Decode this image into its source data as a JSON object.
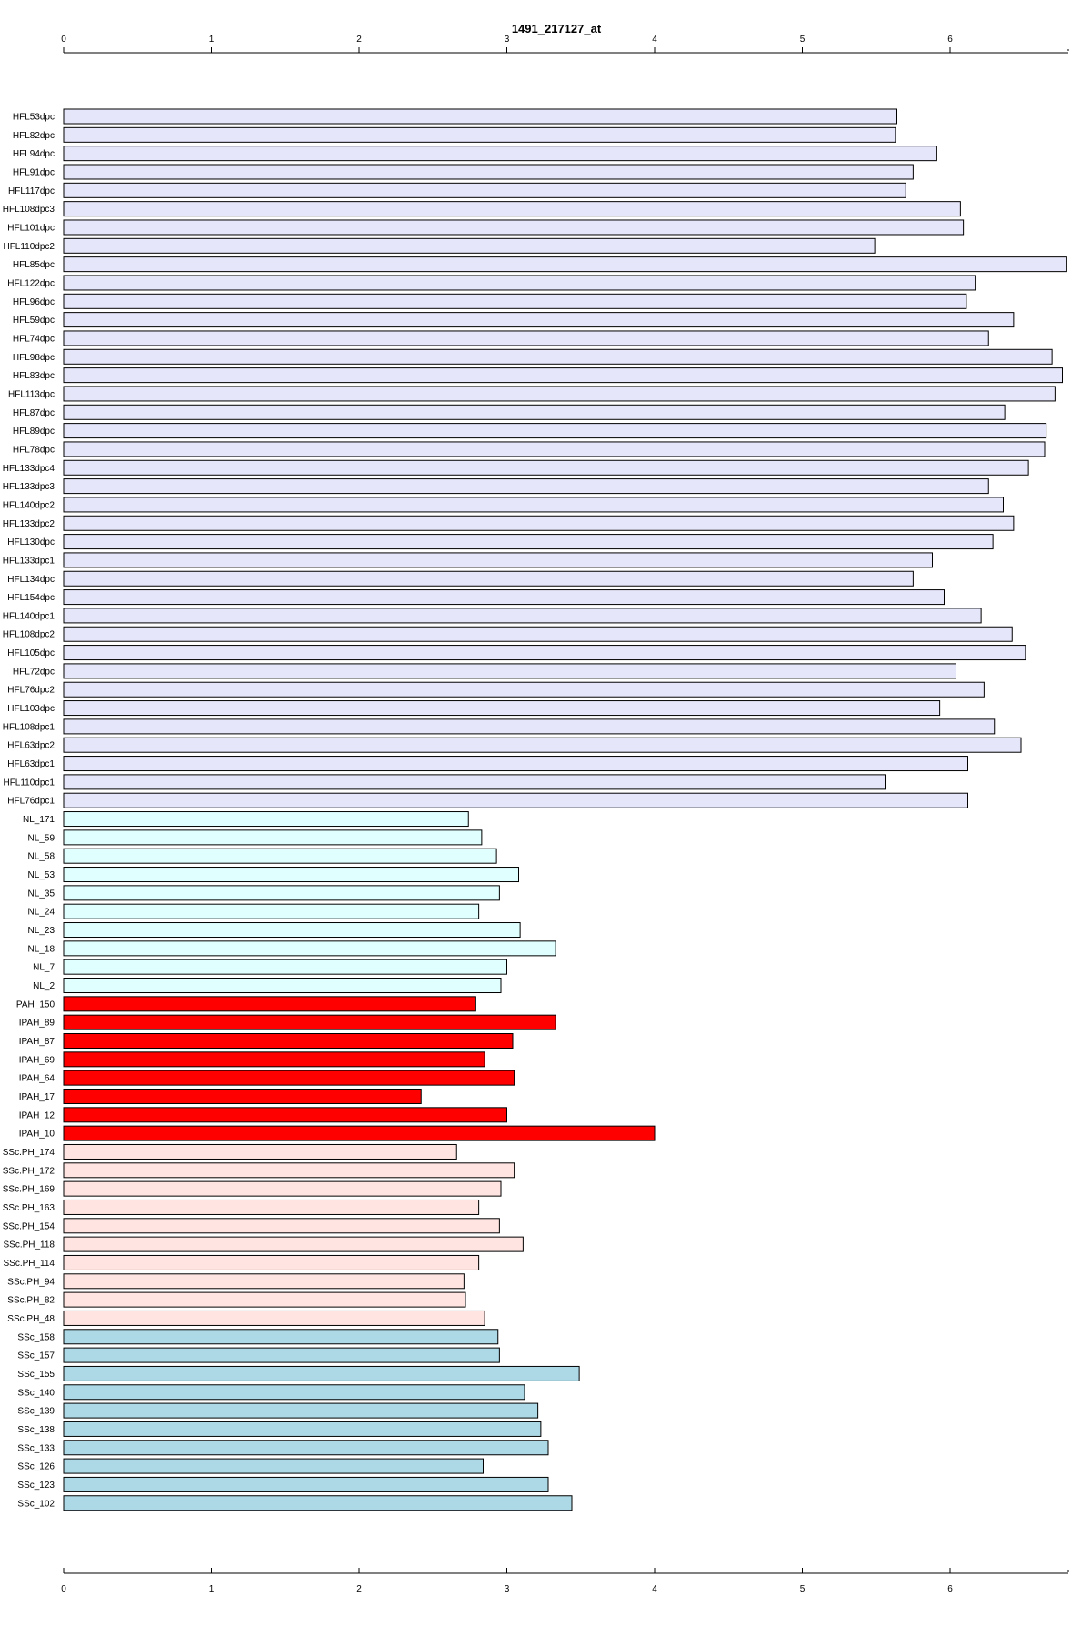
{
  "chart_data": {
    "type": "bar",
    "orientation": "horizontal",
    "title": "1491_217127_at",
    "xlabel": "",
    "ylabel": "",
    "xlim": [
      0,
      6.8
    ],
    "ticks": [
      0,
      1,
      2,
      3,
      4,
      5,
      6
    ],
    "tick_labels": [
      "0",
      "1",
      "2",
      "3",
      "4",
      "5",
      "6"
    ],
    "axes": [
      "top",
      "bottom"
    ],
    "grid": false,
    "group_colors": {
      "HFL": "#e6e6fa",
      "NL": "#e0ffff",
      "IPAH": "#ff0000",
      "SScPH": "#ffe4e1",
      "SSc": "#add8e6"
    },
    "categories": [
      "HFL53dpc",
      "HFL82dpc",
      "HFL94dpc",
      "HFL91dpc",
      "HFL117dpc",
      "HFL108dpc3",
      "HFL101dpc",
      "HFL110dpc2",
      "HFL85dpc",
      "HFL122dpc",
      "HFL96dpc",
      "HFL59dpc",
      "HFL74dpc",
      "HFL98dpc",
      "HFL83dpc",
      "HFL113dpc",
      "HFL87dpc",
      "HFL89dpc",
      "HFL78dpc",
      "HFL133dpc4",
      "HFL133dpc3",
      "HFL140dpc2",
      "HFL133dpc2",
      "HFL130dpc",
      "HFL133dpc1",
      "HFL134dpc",
      "HFL154dpc",
      "HFL140dpc1",
      "HFL108dpc2",
      "HFL105dpc",
      "HFL72dpc",
      "HFL76dpc2",
      "HFL103dpc",
      "HFL108dpc1",
      "HFL63dpc2",
      "HFL63dpc1",
      "HFL110dpc1",
      "HFL76dpc1",
      "NL_171",
      "NL_59",
      "NL_58",
      "NL_53",
      "NL_35",
      "NL_24",
      "NL_23",
      "NL_18",
      "NL_7",
      "NL_2",
      "IPAH_150",
      "IPAH_89",
      "IPAH_87",
      "IPAH_69",
      "IPAH_64",
      "IPAH_17",
      "IPAH_12",
      "IPAH_10",
      "SSc.PH_174",
      "SSc.PH_172",
      "SSc.PH_169",
      "SSc.PH_163",
      "SSc.PH_154",
      "SSc.PH_118",
      "SSc.PH_114",
      "SSc.PH_94",
      "SSc.PH_82",
      "SSc.PH_48",
      "SSc_158",
      "SSc_157",
      "SSc_155",
      "SSc_140",
      "SSc_139",
      "SSc_138",
      "SSc_133",
      "SSc_126",
      "SSc_123",
      "SSc_102"
    ],
    "groups": [
      "HFL",
      "HFL",
      "HFL",
      "HFL",
      "HFL",
      "HFL",
      "HFL",
      "HFL",
      "HFL",
      "HFL",
      "HFL",
      "HFL",
      "HFL",
      "HFL",
      "HFL",
      "HFL",
      "HFL",
      "HFL",
      "HFL",
      "HFL",
      "HFL",
      "HFL",
      "HFL",
      "HFL",
      "HFL",
      "HFL",
      "HFL",
      "HFL",
      "HFL",
      "HFL",
      "HFL",
      "HFL",
      "HFL",
      "HFL",
      "HFL",
      "HFL",
      "HFL",
      "HFL",
      "NL",
      "NL",
      "NL",
      "NL",
      "NL",
      "NL",
      "NL",
      "NL",
      "NL",
      "NL",
      "IPAH",
      "IPAH",
      "IPAH",
      "IPAH",
      "IPAH",
      "IPAH",
      "IPAH",
      "IPAH",
      "SScPH",
      "SScPH",
      "SScPH",
      "SScPH",
      "SScPH",
      "SScPH",
      "SScPH",
      "SScPH",
      "SScPH",
      "SScPH",
      "SSc",
      "SSc",
      "SSc",
      "SSc",
      "SSc",
      "SSc",
      "SSc",
      "SSc",
      "SSc",
      "SSc"
    ],
    "values": [
      5.64,
      5.63,
      5.91,
      5.75,
      5.7,
      6.07,
      6.09,
      5.49,
      6.79,
      6.17,
      6.11,
      6.43,
      6.26,
      6.69,
      6.76,
      6.71,
      6.37,
      6.65,
      6.64,
      6.53,
      6.26,
      6.36,
      6.43,
      6.29,
      5.88,
      5.75,
      5.96,
      6.21,
      6.42,
      6.51,
      6.04,
      6.23,
      5.93,
      6.3,
      6.48,
      6.12,
      5.56,
      6.12,
      2.74,
      2.83,
      2.93,
      3.08,
      2.95,
      2.81,
      3.09,
      3.33,
      3.0,
      2.96,
      2.79,
      3.33,
      3.04,
      2.85,
      3.05,
      2.42,
      3.0,
      4.0,
      2.66,
      3.05,
      2.96,
      2.81,
      2.95,
      3.11,
      2.81,
      2.71,
      2.72,
      2.85,
      2.94,
      2.95,
      3.49,
      3.12,
      3.21,
      3.23,
      3.28,
      2.84,
      3.28,
      3.44
    ]
  }
}
